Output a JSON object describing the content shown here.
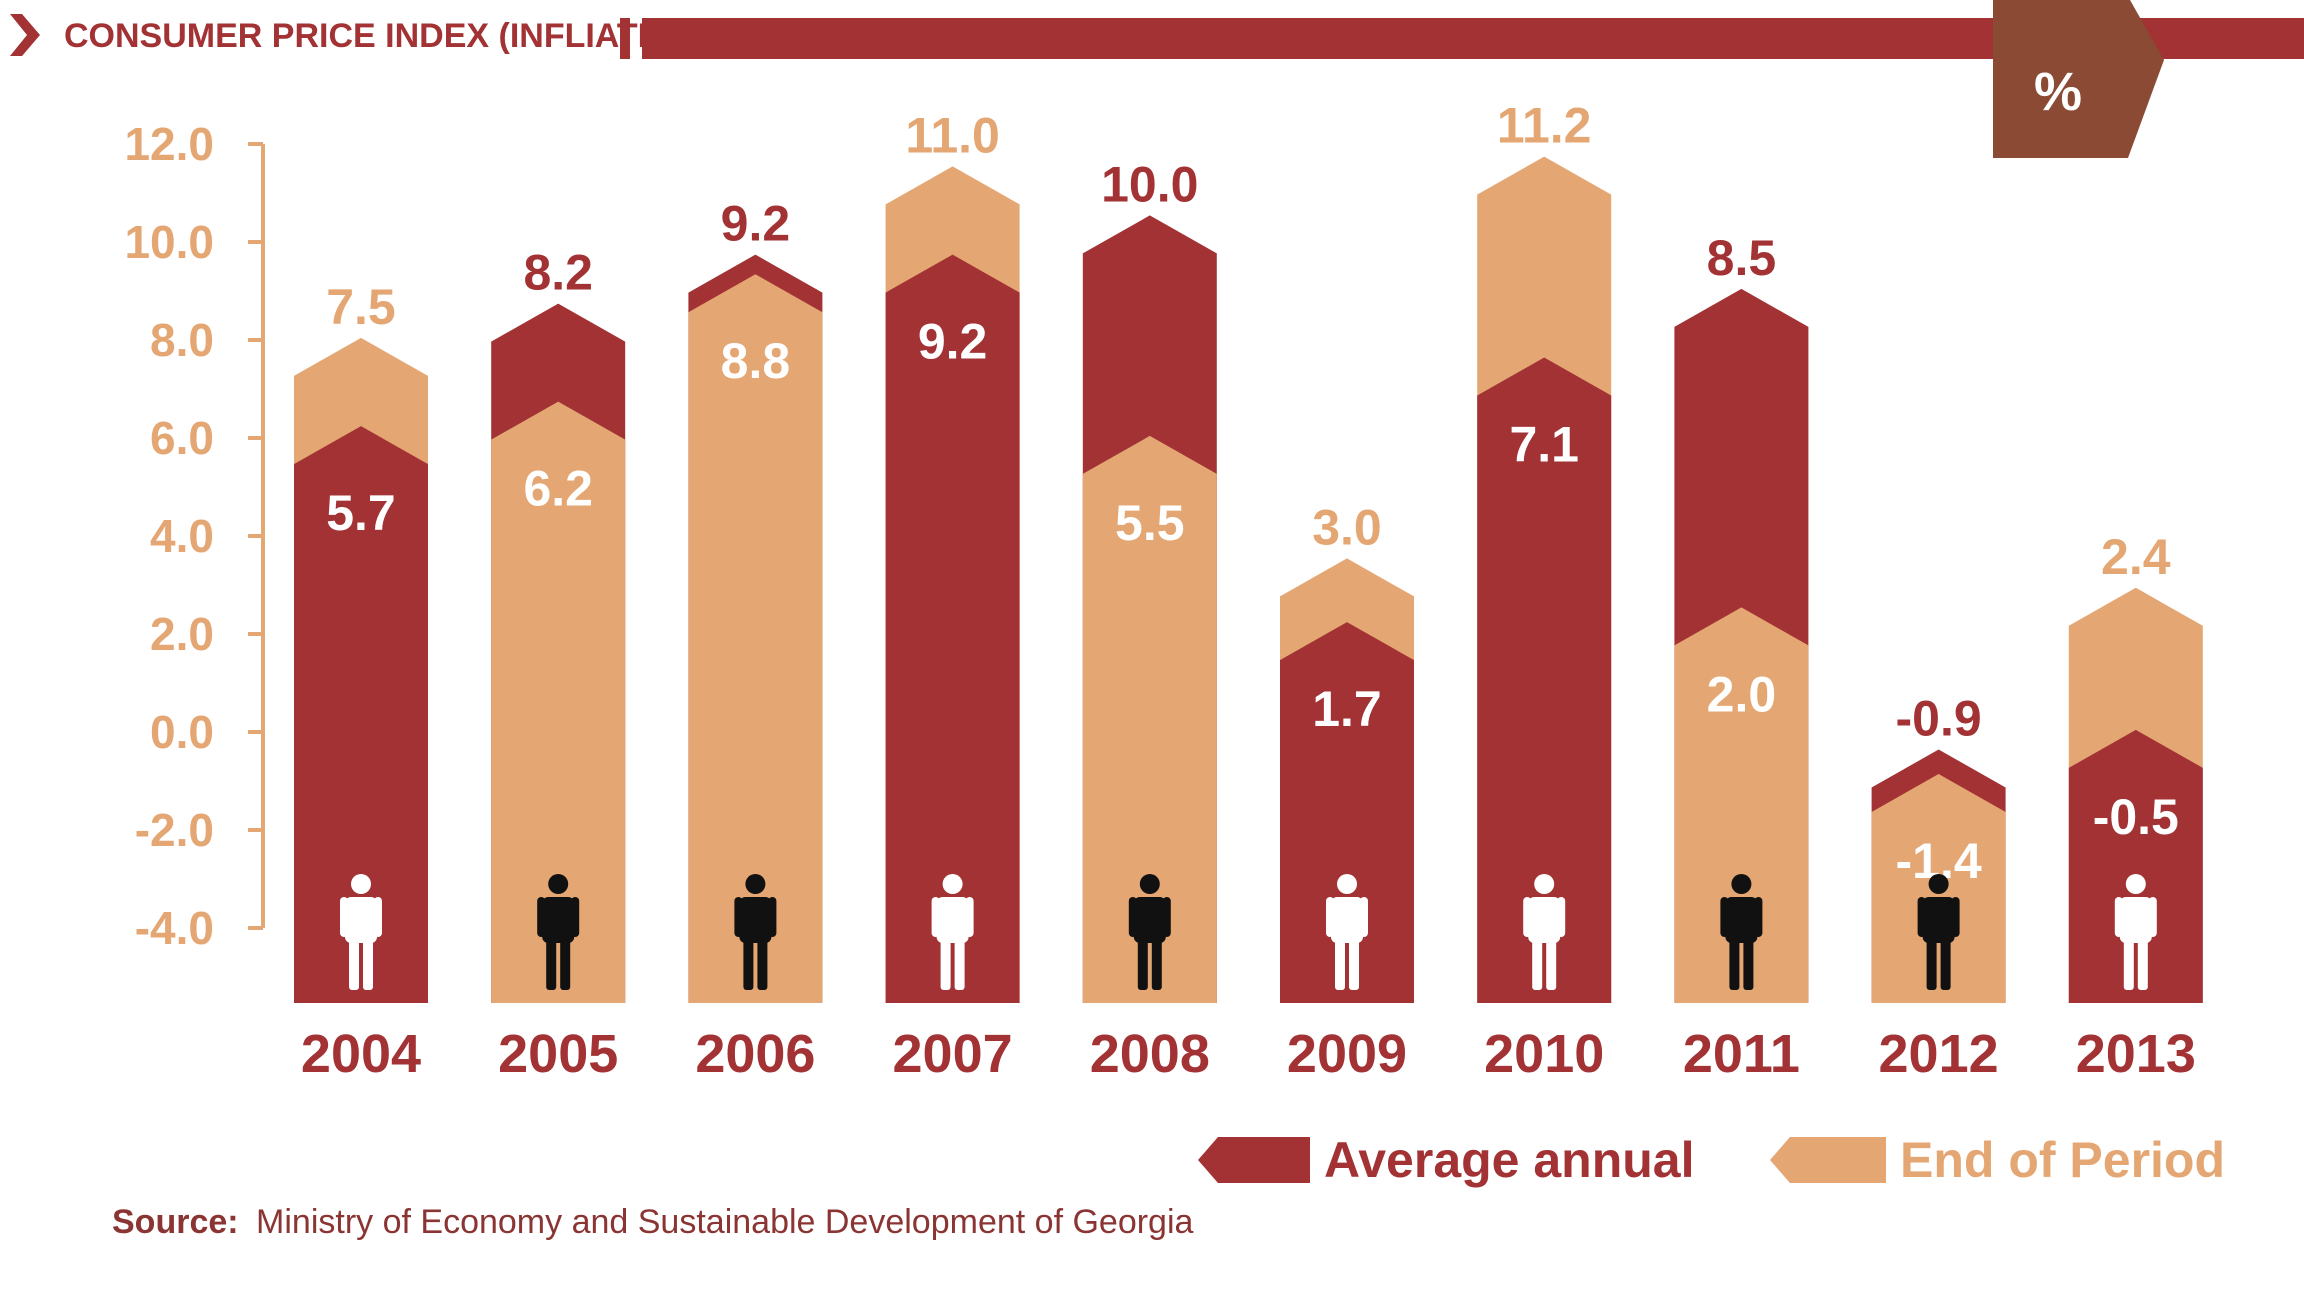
{
  "header": {
    "title": "CONSUMER PRICE INDEX (INFLIATION)",
    "unit_badge": "%"
  },
  "legend": {
    "average_label": "Average annual",
    "end_label": "End of Period"
  },
  "footer": {
    "source_label": "Source:",
    "source_text": "Ministry of Economy and Sustainable Development of Georgia"
  },
  "colors": {
    "average": "#a23234",
    "end": "#e4a672",
    "axis": "#e4a672",
    "badge": "#8a4a33",
    "figure_white": "#ffffff",
    "figure_black": "#111111"
  },
  "chart_data": {
    "type": "bar",
    "title": "CONSUMER PRICE INDEX (INFLIATION)",
    "ylabel": "%",
    "ylim": [
      -4.0,
      12.0
    ],
    "yticks": [
      "12.0",
      "10.0",
      "8.0",
      "6.0",
      "4.0",
      "2.0",
      "0.0",
      "-2.0",
      "-4.0"
    ],
    "categories": [
      "2004",
      "2005",
      "2006",
      "2007",
      "2008",
      "2009",
      "2010",
      "2011",
      "2012",
      "2013"
    ],
    "series": [
      {
        "name": "Average annual",
        "values": [
          5.7,
          8.2,
          9.2,
          9.2,
          10.0,
          1.7,
          7.1,
          8.5,
          -0.9,
          -0.5
        ]
      },
      {
        "name": "End of Period",
        "values": [
          7.5,
          6.2,
          8.8,
          11.0,
          5.5,
          3.0,
          11.2,
          2.0,
          -1.4,
          2.4
        ]
      }
    ],
    "average_labels": [
      "5.7",
      "8.2",
      "9.2",
      "9.2",
      "10.0",
      "1.7",
      "7.1",
      "8.5",
      "-0.9",
      "-0.5"
    ],
    "end_labels": [
      "7.5",
      "6.2",
      "8.8",
      "11.0",
      "5.5",
      "3.0",
      "11.2",
      "2.0",
      "-1.4",
      "2.4"
    ],
    "figure_colors": [
      "white",
      "black",
      "black",
      "white",
      "black",
      "white",
      "white",
      "black",
      "black",
      "white"
    ]
  }
}
